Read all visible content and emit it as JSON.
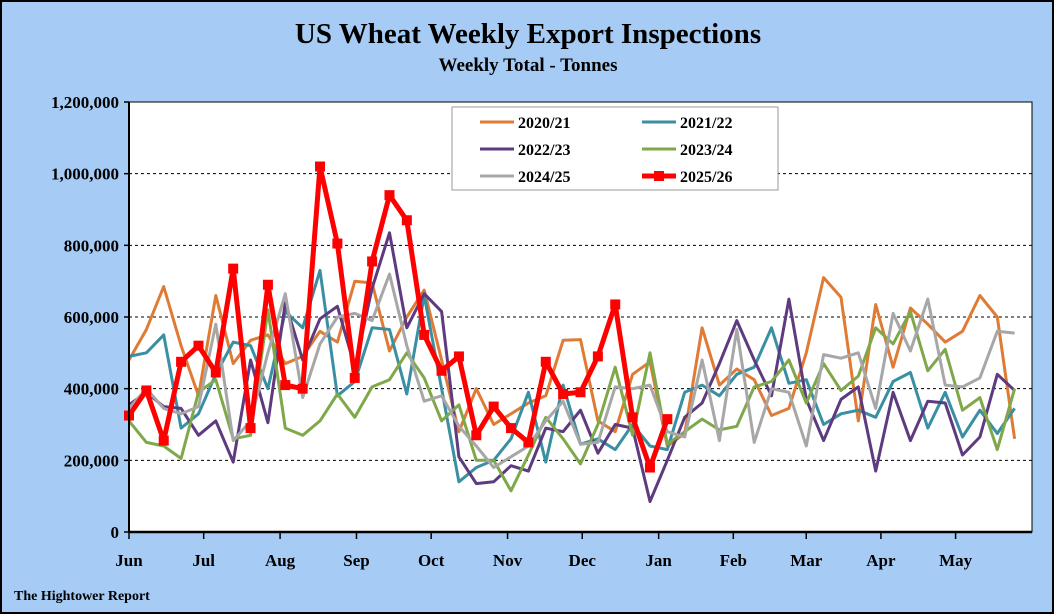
{
  "chart_data": {
    "type": "line",
    "title": "US Wheat Weekly Export Inspections",
    "subtitle": "Weekly Total - Tonnes",
    "xlabel": "",
    "ylabel": "",
    "ylim": [
      0,
      1200000
    ],
    "yticks": [
      0,
      200000,
      400000,
      600000,
      800000,
      1000000,
      1200000
    ],
    "ytick_labels": [
      "0",
      "200,000",
      "400,000",
      "600,000",
      "800,000",
      "1,000,000",
      "1,200,000"
    ],
    "xlim": [
      0,
      52
    ],
    "month_ticks": [
      {
        "label": "Jun",
        "week": 0
      },
      {
        "label": "Jul",
        "week": 4.3
      },
      {
        "label": "Aug",
        "week": 8.7
      },
      {
        "label": "Sep",
        "week": 13.1
      },
      {
        "label": "Oct",
        "week": 17.4
      },
      {
        "label": "Nov",
        "week": 21.8
      },
      {
        "label": "Dec",
        "week": 26.1
      },
      {
        "label": "Jan",
        "week": 30.5
      },
      {
        "label": "Feb",
        "week": 34.8
      },
      {
        "label": "Mar",
        "week": 39.0
      },
      {
        "label": "Apr",
        "week": 43.3
      },
      {
        "label": "May",
        "week": 47.6
      }
    ],
    "grid": "horizontal",
    "legend_position": "top-center",
    "series": [
      {
        "name": "2020/21",
        "color": "#e07b35",
        "values": [
          480000,
          565000,
          685000,
          520000,
          380000,
          660000,
          470000,
          535000,
          550000,
          470000,
          490000,
          560000,
          530000,
          700000,
          695000,
          505000,
          600000,
          675000,
          480000,
          280000,
          400000,
          300000,
          330000,
          360000,
          380000,
          535000,
          537000,
          310000,
          280000,
          440000,
          475000,
          240000,
          275000,
          570000,
          410000,
          455000,
          425000,
          325000,
          345000,
          500000,
          710000,
          655000,
          310000,
          635000,
          460000,
          625000,
          580000,
          530000,
          560000,
          660000,
          600000,
          260000
        ]
      },
      {
        "name": "2021/22",
        "color": "#3a8fa3",
        "values": [
          490000,
          500000,
          550000,
          290000,
          330000,
          440000,
          530000,
          520000,
          400000,
          615000,
          570000,
          730000,
          380000,
          420000,
          570000,
          565000,
          385000,
          660000,
          400000,
          140000,
          180000,
          200000,
          260000,
          390000,
          195000,
          410000,
          245000,
          260000,
          230000,
          300000,
          240000,
          230000,
          390000,
          410000,
          380000,
          440000,
          460000,
          570000,
          415000,
          425000,
          300000,
          330000,
          340000,
          320000,
          420000,
          445000,
          290000,
          390000,
          265000,
          340000,
          275000,
          345000
        ]
      },
      {
        "name": "2022/23",
        "color": "#5e3a7e",
        "values": [
          355000,
          390000,
          350000,
          345000,
          270000,
          310000,
          195000,
          480000,
          305000,
          640000,
          480000,
          595000,
          630000,
          460000,
          680000,
          835000,
          570000,
          665000,
          615000,
          210000,
          135000,
          140000,
          185000,
          170000,
          290000,
          280000,
          340000,
          220000,
          300000,
          290000,
          85000,
          200000,
          320000,
          360000,
          470000,
          590000,
          480000,
          380000,
          650000,
          370000,
          255000,
          370000,
          405000,
          170000,
          390000,
          255000,
          365000,
          360000,
          215000,
          265000,
          440000,
          395000
        ]
      },
      {
        "name": "2023/24",
        "color": "#7fa84a",
        "values": [
          310000,
          250000,
          240000,
          205000,
          390000,
          425000,
          260000,
          270000,
          620000,
          290000,
          270000,
          310000,
          385000,
          320000,
          405000,
          425000,
          500000,
          430000,
          310000,
          355000,
          200000,
          200000,
          115000,
          215000,
          320000,
          260000,
          190000,
          300000,
          460000,
          270000,
          500000,
          245000,
          280000,
          315000,
          285000,
          295000,
          405000,
          420000,
          480000,
          360000,
          470000,
          395000,
          435000,
          570000,
          525000,
          615000,
          450000,
          510000,
          340000,
          375000,
          230000,
          400000
        ]
      },
      {
        "name": "2024/25",
        "color": "#a7a7a7",
        "values": [
          345000,
          400000,
          345000,
          330000,
          350000,
          580000,
          255000,
          310000,
          500000,
          665000,
          375000,
          525000,
          600000,
          610000,
          590000,
          720000,
          520000,
          365000,
          380000,
          295000,
          240000,
          180000,
          210000,
          240000,
          310000,
          365000,
          245000,
          250000,
          405000,
          400000,
          410000,
          280000,
          265000,
          480000,
          255000,
          565000,
          250000,
          400000,
          390000,
          240000,
          495000,
          485000,
          500000,
          345000,
          610000,
          505000,
          650000,
          410000,
          405000,
          430000,
          560000,
          555000
        ]
      },
      {
        "name": "2025/26",
        "color": "#ff0000",
        "values": [
          325000,
          395000,
          255000,
          475000,
          520000,
          445000,
          735000,
          290000,
          690000,
          410000,
          400000,
          1020000,
          805000,
          430000,
          755000,
          940000,
          870000,
          550000,
          450000,
          490000,
          270000,
          350000,
          290000,
          250000,
          475000,
          385000,
          390000,
          490000,
          635000,
          320000,
          180000,
          315000
        ]
      }
    ]
  },
  "source": "The Hightower Report"
}
